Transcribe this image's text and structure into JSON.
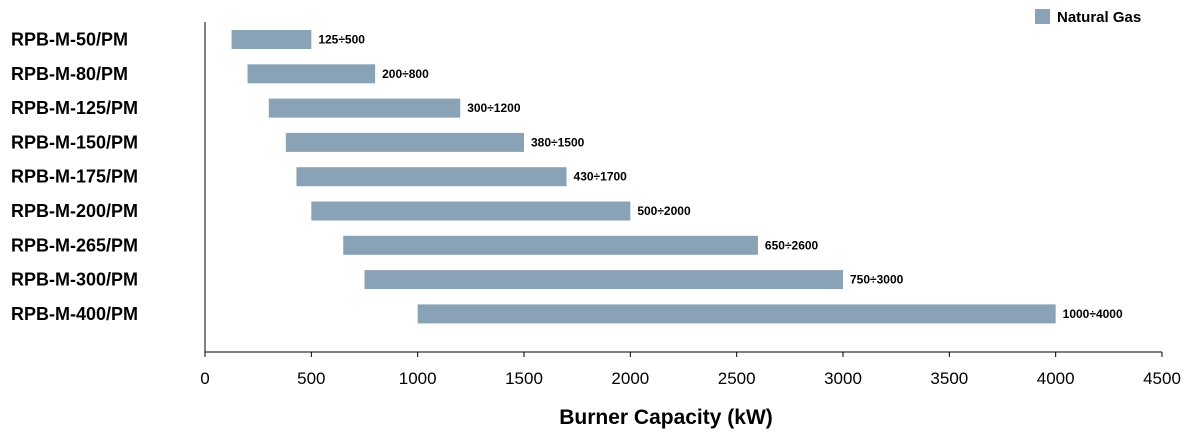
{
  "chart_data": {
    "type": "bar",
    "orientation": "horizontal-range",
    "categories": [
      "RPB-M-50/PM",
      "RPB-M-80/PM",
      "RPB-M-125/PM",
      "RPB-M-150/PM",
      "RPB-M-175/PM",
      "RPB-M-200/PM",
      "RPB-M-265/PM",
      "RPB-M-300/PM",
      "RPB-M-400/PM"
    ],
    "series": [
      {
        "name": "Natural Gas",
        "color": "#8aa2b6",
        "ranges": [
          [
            125,
            500
          ],
          [
            200,
            800
          ],
          [
            300,
            1200
          ],
          [
            380,
            1500
          ],
          [
            430,
            1700
          ],
          [
            500,
            2000
          ],
          [
            650,
            2600
          ],
          [
            750,
            3000
          ],
          [
            1000,
            4000
          ]
        ],
        "labels": [
          "125÷500",
          "200÷800",
          "300÷1200",
          "380÷1500",
          "430÷1700",
          "500÷2000",
          "650÷2600",
          "750÷3000",
          "1000÷4000"
        ]
      }
    ],
    "xlabel": "Burner Capacity (kW)",
    "ylabel": "",
    "xlim": [
      0,
      4500
    ],
    "xticks": [
      0,
      500,
      1000,
      1500,
      2000,
      2500,
      3000,
      3500,
      4000,
      4500
    ],
    "grid": false,
    "legend": "top-right"
  }
}
